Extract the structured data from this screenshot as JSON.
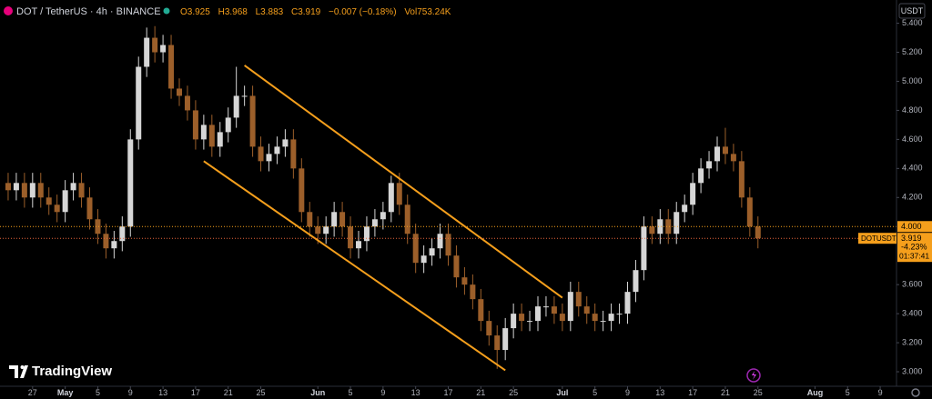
{
  "header": {
    "symbol": "DOT / TetherUS · 4h · BINANCE",
    "ohlc": [
      "O3.925",
      "H3.968",
      "L3.883",
      "C3.919",
      "−0.007 (−0.18%)",
      "Vol753.24K"
    ],
    "currency": "USDT",
    "brand": "TradingView"
  },
  "chart_data": {
    "type": "candlestick",
    "x": [
      "Apr 24",
      "Apr 25",
      "Apr 26",
      "Apr 27",
      "Apr 28",
      "Apr 29",
      "Apr 30",
      "May 1",
      "May 2",
      "May 3",
      "May 4",
      "May 5",
      "May 6",
      "May 7",
      "May 8",
      "May 9",
      "May 10",
      "May 11",
      "May 12",
      "May 13",
      "May 14",
      "May 15",
      "May 16",
      "May 17",
      "May 18",
      "May 19",
      "May 20",
      "May 21",
      "May 22",
      "May 23",
      "May 24",
      "May 25",
      "May 26",
      "May 27",
      "May 28",
      "May 29",
      "May 30",
      "May 31",
      "Jun 1",
      "Jun 2",
      "Jun 3",
      "Jun 4",
      "Jun 5",
      "Jun 6",
      "Jun 7",
      "Jun 8",
      "Jun 9",
      "Jun 10",
      "Jun 11",
      "Jun 12",
      "Jun 13",
      "Jun 14",
      "Jun 15",
      "Jun 16",
      "Jun 17",
      "Jun 18",
      "Jun 19",
      "Jun 20",
      "Jun 21",
      "Jun 22",
      "Jun 23",
      "Jun 24",
      "Jun 25",
      "Jun 26",
      "Jun 27",
      "Jun 28",
      "Jun 29",
      "Jun 30",
      "Jul 1",
      "Jul 2",
      "Jul 3",
      "Jul 4",
      "Jul 5",
      "Jul 6",
      "Jul 7",
      "Jul 8",
      "Jul 9",
      "Jul 10",
      "Jul 11",
      "Jul 12",
      "Jul 13",
      "Jul 14",
      "Jul 15",
      "Jul 16",
      "Jul 17",
      "Jul 18",
      "Jul 19",
      "Jul 20",
      "Jul 21",
      "Jul 22",
      "Jul 23",
      "Jul 24",
      "Jul 25"
    ],
    "open": [
      4.3,
      4.25,
      4.3,
      4.2,
      4.3,
      4.2,
      4.15,
      4.1,
      4.25,
      4.3,
      4.2,
      4.05,
      3.95,
      3.85,
      3.9,
      4.0,
      4.6,
      5.1,
      5.3,
      5.2,
      5.25,
      4.95,
      4.9,
      4.8,
      4.6,
      4.7,
      4.55,
      4.65,
      4.75,
      4.9,
      4.9,
      4.55,
      4.45,
      4.5,
      4.55,
      4.6,
      4.4,
      4.1,
      4.0,
      3.95,
      4.0,
      4.1,
      4.0,
      3.85,
      3.9,
      4.0,
      4.05,
      4.1,
      4.3,
      4.15,
      3.95,
      3.75,
      3.8,
      3.85,
      3.95,
      3.8,
      3.65,
      3.6,
      3.5,
      3.35,
      3.25,
      3.15,
      3.3,
      3.4,
      3.35,
      3.35,
      3.45,
      3.45,
      3.4,
      3.35,
      3.55,
      3.45,
      3.4,
      3.35,
      3.35,
      3.4,
      3.4,
      3.55,
      3.7,
      4.0,
      3.95,
      4.05,
      3.95,
      4.1,
      4.15,
      4.3,
      4.4,
      4.45,
      4.55,
      4.5,
      4.45,
      4.2,
      4.0
    ],
    "high": [
      4.37,
      4.37,
      4.37,
      4.37,
      4.37,
      4.27,
      4.22,
      4.32,
      4.37,
      4.37,
      4.27,
      4.12,
      4.02,
      3.97,
      4.07,
      4.67,
      5.17,
      5.37,
      5.38,
      5.32,
      5.32,
      5.02,
      4.97,
      4.87,
      4.77,
      4.77,
      4.72,
      4.82,
      5.1,
      4.97,
      4.97,
      4.62,
      4.57,
      4.62,
      4.67,
      4.67,
      4.47,
      4.17,
      4.07,
      4.07,
      4.17,
      4.17,
      4.07,
      3.97,
      4.07,
      4.12,
      4.17,
      4.35,
      4.37,
      4.22,
      4.02,
      3.87,
      3.92,
      4.02,
      4.02,
      3.87,
      3.72,
      3.67,
      3.57,
      3.42,
      3.32,
      3.37,
      3.47,
      3.47,
      3.42,
      3.52,
      3.52,
      3.52,
      3.47,
      3.62,
      3.62,
      3.52,
      3.47,
      3.42,
      3.47,
      3.47,
      3.62,
      3.77,
      4.07,
      4.07,
      4.12,
      4.12,
      4.17,
      4.22,
      4.37,
      4.47,
      4.52,
      4.62,
      4.68,
      4.57,
      4.52,
      4.27,
      4.07
    ],
    "low": [
      4.18,
      4.18,
      4.13,
      4.13,
      4.13,
      4.08,
      4.03,
      4.03,
      4.18,
      4.13,
      3.98,
      3.88,
      3.78,
      3.78,
      3.83,
      3.93,
      4.53,
      5.03,
      5.13,
      5.13,
      4.88,
      4.83,
      4.73,
      4.53,
      4.53,
      4.48,
      4.48,
      4.58,
      4.68,
      4.83,
      4.48,
      4.38,
      4.38,
      4.43,
      4.48,
      4.33,
      4.03,
      3.93,
      3.88,
      3.88,
      3.93,
      3.93,
      3.78,
      3.78,
      3.83,
      3.93,
      3.98,
      4.03,
      4.08,
      3.88,
      3.68,
      3.68,
      3.73,
      3.78,
      3.73,
      3.58,
      3.53,
      3.43,
      3.28,
      3.18,
      3.02,
      3.08,
      3.23,
      3.28,
      3.28,
      3.28,
      3.38,
      3.33,
      3.28,
      3.28,
      3.38,
      3.33,
      3.28,
      3.28,
      3.28,
      3.33,
      3.33,
      3.48,
      3.63,
      3.88,
      3.88,
      3.88,
      3.88,
      4.03,
      4.08,
      4.23,
      4.33,
      4.38,
      4.43,
      4.38,
      4.13,
      3.93,
      3.85
    ],
    "close": [
      4.25,
      4.3,
      4.2,
      4.3,
      4.2,
      4.15,
      4.1,
      4.25,
      4.3,
      4.2,
      4.05,
      3.95,
      3.85,
      3.9,
      4.0,
      4.6,
      5.1,
      5.3,
      5.2,
      5.25,
      4.95,
      4.9,
      4.8,
      4.6,
      4.7,
      4.55,
      4.65,
      4.75,
      4.9,
      4.9,
      4.55,
      4.45,
      4.5,
      4.55,
      4.6,
      4.4,
      4.1,
      4.0,
      3.95,
      4.0,
      4.1,
      4.0,
      3.85,
      3.9,
      4.0,
      4.05,
      4.1,
      4.3,
      4.15,
      3.95,
      3.75,
      3.8,
      3.85,
      3.95,
      3.8,
      3.65,
      3.6,
      3.5,
      3.35,
      3.25,
      3.15,
      3.3,
      3.4,
      3.35,
      3.35,
      3.45,
      3.45,
      3.4,
      3.35,
      3.55,
      3.45,
      3.4,
      3.35,
      3.35,
      3.4,
      3.4,
      3.55,
      3.7,
      4.0,
      3.95,
      4.05,
      3.95,
      4.1,
      4.15,
      4.3,
      4.4,
      4.45,
      4.55,
      4.5,
      4.45,
      4.2,
      4.0,
      3.919
    ],
    "up_color": "#d6d6d6",
    "down_color": "#9c5f2a",
    "xlim": [
      "Apr 23",
      "Aug 11"
    ],
    "ylim": [
      2.9,
      5.56
    ],
    "xticks": [
      {
        "value": "Apr 27",
        "label": "27"
      },
      {
        "value": "May 1",
        "label": "May"
      },
      {
        "value": "May 5",
        "label": "5"
      },
      {
        "value": "May 9",
        "label": "9"
      },
      {
        "value": "May 13",
        "label": "13"
      },
      {
        "value": "May 17",
        "label": "17"
      },
      {
        "value": "May 21",
        "label": "21"
      },
      {
        "value": "May 25",
        "label": "25"
      },
      {
        "value": "Jun 1",
        "label": "Jun"
      },
      {
        "value": "Jun 5",
        "label": "5"
      },
      {
        "value": "Jun 9",
        "label": "9"
      },
      {
        "value": "Jun 13",
        "label": "13"
      },
      {
        "value": "Jun 17",
        "label": "17"
      },
      {
        "value": "Jun 21",
        "label": "21"
      },
      {
        "value": "Jun 25",
        "label": "25"
      },
      {
        "value": "Jul 1",
        "label": "Jul"
      },
      {
        "value": "Jul 5",
        "label": "5"
      },
      {
        "value": "Jul 9",
        "label": "9"
      },
      {
        "value": "Jul 13",
        "label": "13"
      },
      {
        "value": "Jul 17",
        "label": "17"
      },
      {
        "value": "Jul 21",
        "label": "21"
      },
      {
        "value": "Jul 25",
        "label": "25"
      },
      {
        "value": "Aug 1",
        "label": "Aug"
      },
      {
        "value": "Aug 5",
        "label": "5"
      },
      {
        "value": "Aug 9",
        "label": "9"
      }
    ],
    "yticks": [
      {
        "value": 5.4,
        "label": "5.400"
      },
      {
        "value": 5.2,
        "label": "5.200"
      },
      {
        "value": 5.0,
        "label": "5.000"
      },
      {
        "value": 4.8,
        "label": "4.800"
      },
      {
        "value": 4.6,
        "label": "4.600"
      },
      {
        "value": 4.4,
        "label": "4.400"
      },
      {
        "value": 4.2,
        "label": "4.200"
      },
      {
        "value": 3.6,
        "label": "3.600"
      },
      {
        "value": 3.4,
        "label": "3.400"
      },
      {
        "value": 3.2,
        "label": "3.200"
      },
      {
        "value": 3.0,
        "label": "3.000"
      }
    ],
    "channels": [
      {
        "x": [
          "May 23",
          "Jul 1"
        ],
        "y": [
          5.11,
          3.51
        ]
      },
      {
        "x": [
          "May 18",
          "Jun 24"
        ],
        "y": [
          4.45,
          3.01
        ]
      }
    ],
    "channel_color": "#f59f1c",
    "price_line": {
      "value": 4.0,
      "label": "4.000",
      "color": "#f59f1c"
    },
    "last_price": {
      "symbol": "DOTUSDT",
      "value": 3.919,
      "change": "-4.23%",
      "countdown": "01:37:41",
      "color": "#f59f1c"
    }
  }
}
